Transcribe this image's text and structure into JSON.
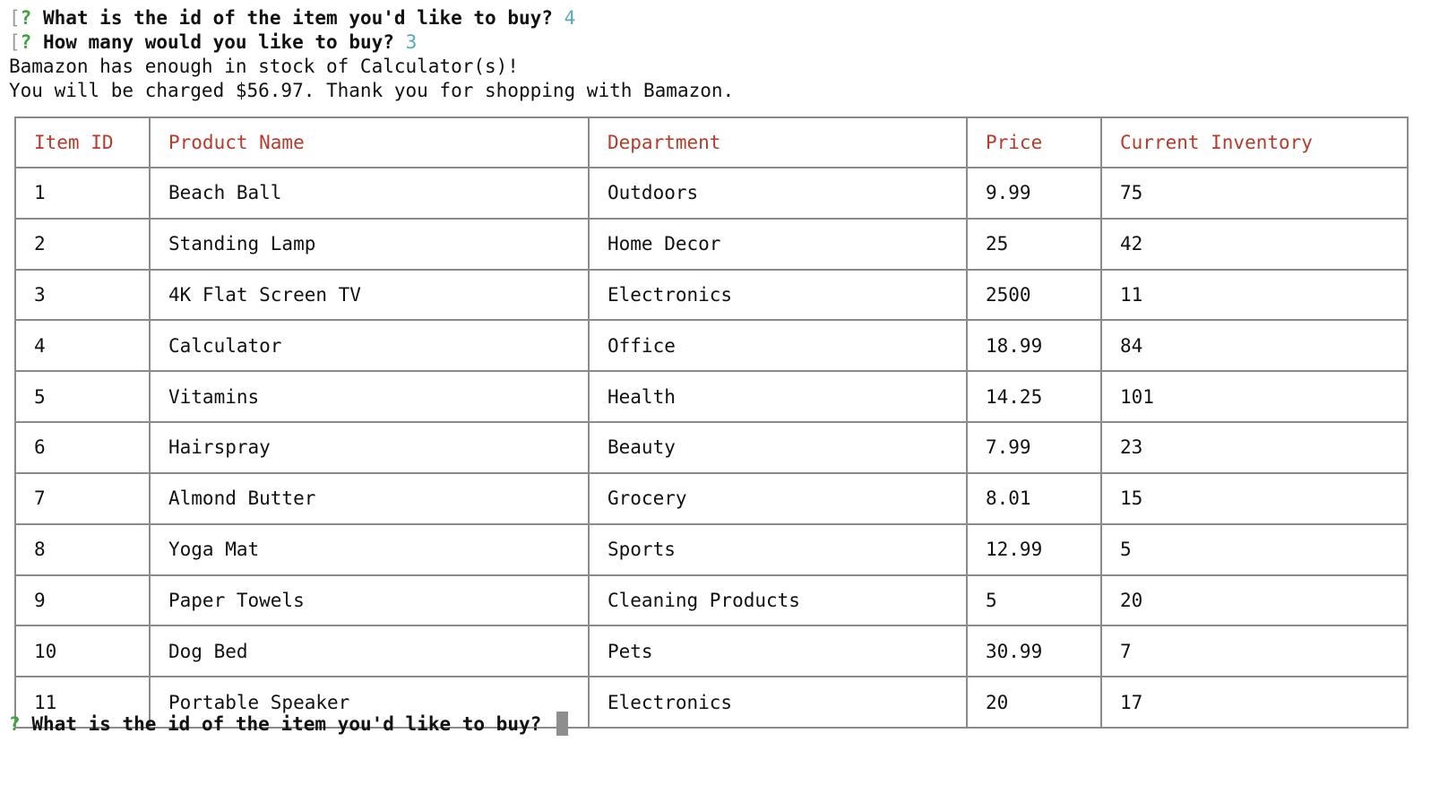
{
  "terminal": {
    "history": [
      {
        "bracket": "[",
        "qmark": "?",
        "prompt": "What is the id of the item you'd like to buy?",
        "answer": "4"
      },
      {
        "bracket": "[",
        "qmark": "?",
        "prompt": "How many would you like to buy?",
        "answer": "3"
      }
    ],
    "messages": [
      "Bamazon has enough in stock of Calculator(s)!",
      "You will be charged $56.97. Thank you for shopping with Bamazon."
    ],
    "current_prompt": {
      "qmark": "?",
      "prompt": "What is the id of the item you'd like to buy?",
      "input_value": ""
    }
  },
  "table": {
    "headers": [
      "Item ID",
      "Product Name",
      "Department",
      "Price",
      "Current Inventory"
    ],
    "rows": [
      [
        "1",
        "Beach Ball",
        "Outdoors",
        "9.99",
        "75"
      ],
      [
        "2",
        "Standing Lamp",
        "Home Decor",
        "25",
        "42"
      ],
      [
        "3",
        "4K Flat Screen TV",
        "Electronics",
        "2500",
        "11"
      ],
      [
        "4",
        "Calculator",
        "Office",
        "18.99",
        "84"
      ],
      [
        "5",
        "Vitamins",
        "Health",
        "14.25",
        "101"
      ],
      [
        "6",
        "Hairspray",
        "Beauty",
        "7.99",
        "23"
      ],
      [
        "7",
        "Almond Butter",
        "Grocery",
        "8.01",
        "15"
      ],
      [
        "8",
        "Yoga Mat",
        "Sports",
        "12.99",
        "5"
      ],
      [
        "9",
        "Paper Towels",
        "Cleaning Products",
        "5",
        "20"
      ],
      [
        "10",
        "Dog Bed",
        "Pets",
        "30.99",
        "7"
      ],
      [
        "11",
        "Portable Speaker",
        "Electronics",
        "20",
        "17"
      ]
    ]
  },
  "colors": {
    "header_text": "#b83a2a",
    "answer_text": "#55aab8",
    "question_mark": "#3aa53a",
    "table_border": "#8a8a8a",
    "cursor": "#8e8e8e"
  }
}
